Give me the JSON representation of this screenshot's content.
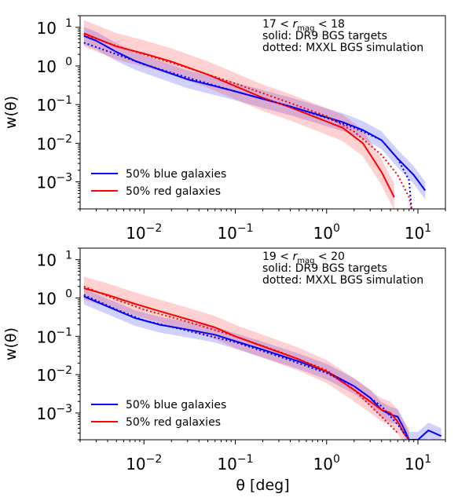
{
  "chart_data": [
    {
      "type": "line",
      "xscale": "log",
      "yscale": "log",
      "xlim": [
        0.002,
        20
      ],
      "ylim": [
        0.0002,
        20
      ],
      "ylabel": "w(θ)",
      "x_ticks": [
        {
          "value": 0.01,
          "base": "10",
          "exp": "−2"
        },
        {
          "value": 0.1,
          "base": "10",
          "exp": "−1"
        },
        {
          "value": 1,
          "base": "10",
          "exp": "0"
        },
        {
          "value": 10,
          "base": "10",
          "exp": "1"
        }
      ],
      "y_ticks": [
        {
          "value": 10,
          "base": "10",
          "exp": "1"
        },
        {
          "value": 1,
          "base": "10",
          "exp": "0"
        },
        {
          "value": 0.1,
          "base": "10",
          "exp": "−1"
        },
        {
          "value": 0.01,
          "base": "10",
          "exp": "−2"
        },
        {
          "value": 0.001,
          "base": "10",
          "exp": "−3"
        }
      ],
      "annotation": {
        "mag_left": "17 < ",
        "mag_r": "r",
        "mag_sub": "mag",
        "mag_right": " < 18",
        "line2": "solid: DR9 BGS targets",
        "line3": "dotted: MXXL BGS simulation"
      },
      "legend_position": "lower-left",
      "series": [
        {
          "name": "50% blue galaxies",
          "color": "#0000ff",
          "style": "solid",
          "points": [
            [
              0.0022,
              6.0
            ],
            [
              0.003,
              4.5
            ],
            [
              0.005,
              2.3
            ],
            [
              0.008,
              1.35
            ],
            [
              0.015,
              0.8
            ],
            [
              0.03,
              0.45
            ],
            [
              0.06,
              0.3
            ],
            [
              0.1,
              0.22
            ],
            [
              0.2,
              0.14
            ],
            [
              0.4,
              0.09
            ],
            [
              0.8,
              0.055
            ],
            [
              1.5,
              0.035
            ],
            [
              2.5,
              0.022
            ],
            [
              4,
              0.012
            ],
            [
              6,
              0.004
            ],
            [
              9,
              0.0015
            ],
            [
              12,
              0.0006
            ]
          ],
          "band_factor": 1.7
        },
        {
          "name": "50% red galaxies",
          "color": "#ff0000",
          "style": "solid",
          "points": [
            [
              0.0022,
              7.0
            ],
            [
              0.003,
              5.2
            ],
            [
              0.005,
              3.2
            ],
            [
              0.01,
              2.1
            ],
            [
              0.02,
              1.3
            ],
            [
              0.05,
              0.6
            ],
            [
              0.1,
              0.3
            ],
            [
              0.2,
              0.15
            ],
            [
              0.4,
              0.085
            ],
            [
              0.8,
              0.045
            ],
            [
              1.5,
              0.025
            ],
            [
              2.5,
              0.01
            ],
            [
              4,
              0.0018
            ],
            [
              5.5,
              0.0004
            ]
          ],
          "band_factor": 2.2
        },
        {
          "name": "",
          "color": "#0000ff",
          "style": "dotted",
          "points": [
            [
              0.0022,
              4.0
            ],
            [
              0.005,
              2.0
            ],
            [
              0.01,
              1.1
            ],
            [
              0.03,
              0.5
            ],
            [
              0.1,
              0.22
            ],
            [
              0.3,
              0.11
            ],
            [
              1,
              0.045
            ],
            [
              2,
              0.025
            ],
            [
              4,
              0.012
            ],
            [
              6,
              0.004
            ],
            [
              8,
              0.0011
            ],
            [
              8.5,
              0.0002
            ]
          ]
        },
        {
          "name": "",
          "color": "#ff0000",
          "style": "dotted",
          "points": [
            [
              0.0022,
              6.5
            ],
            [
              0.005,
              3.3
            ],
            [
              0.01,
              2.0
            ],
            [
              0.03,
              0.9
            ],
            [
              0.1,
              0.35
            ],
            [
              0.3,
              0.14
            ],
            [
              1,
              0.05
            ],
            [
              2,
              0.02
            ],
            [
              4,
              0.005
            ],
            [
              6,
              0.0015
            ],
            [
              8,
              0.0004
            ],
            [
              8.5,
              0.0002
            ]
          ]
        }
      ]
    },
    {
      "type": "line",
      "xscale": "log",
      "yscale": "log",
      "xlim": [
        0.002,
        20
      ],
      "ylim": [
        0.0002,
        20
      ],
      "ylabel": "w(θ)",
      "xlabel": "θ [deg]",
      "x_ticks": [
        {
          "value": 0.01,
          "base": "10",
          "exp": "−2"
        },
        {
          "value": 0.1,
          "base": "10",
          "exp": "−1"
        },
        {
          "value": 1,
          "base": "10",
          "exp": "0"
        },
        {
          "value": 10,
          "base": "10",
          "exp": "1"
        }
      ],
      "y_ticks": [
        {
          "value": 10,
          "base": "10",
          "exp": "1"
        },
        {
          "value": 1,
          "base": "10",
          "exp": "0"
        },
        {
          "value": 0.1,
          "base": "10",
          "exp": "−1"
        },
        {
          "value": 0.01,
          "base": "10",
          "exp": "−2"
        },
        {
          "value": 0.001,
          "base": "10",
          "exp": "−3"
        }
      ],
      "annotation": {
        "mag_left": "19 < ",
        "mag_r": "r",
        "mag_sub": "mag",
        "mag_right": " < 20",
        "line2": "solid: DR9 BGS targets",
        "line3": "dotted: MXXL BGS simulation"
      },
      "legend_position": "lower-left",
      "series": [
        {
          "name": "50% blue galaxies",
          "color": "#0000ff",
          "style": "solid",
          "points": [
            [
              0.0022,
              1.1
            ],
            [
              0.004,
              0.6
            ],
            [
              0.008,
              0.3
            ],
            [
              0.015,
              0.2
            ],
            [
              0.03,
              0.15
            ],
            [
              0.06,
              0.11
            ],
            [
              0.1,
              0.075
            ],
            [
              0.2,
              0.045
            ],
            [
              0.5,
              0.022
            ],
            [
              1,
              0.012
            ],
            [
              2,
              0.005
            ],
            [
              3,
              0.0025
            ],
            [
              4,
              0.0012
            ],
            [
              5,
              0.0009
            ],
            [
              6,
              0.0008
            ],
            [
              7,
              0.0004
            ],
            [
              8,
              0.0002
            ],
            [
              10,
              0.0002
            ],
            [
              13,
              0.00035
            ],
            [
              18,
              0.00025
            ]
          ],
          "band_factor": 1.6
        },
        {
          "name": "50% red galaxies",
          "color": "#ff0000",
          "style": "solid",
          "points": [
            [
              0.0022,
              1.8
            ],
            [
              0.004,
              1.2
            ],
            [
              0.008,
              0.7
            ],
            [
              0.015,
              0.45
            ],
            [
              0.03,
              0.28
            ],
            [
              0.06,
              0.17
            ],
            [
              0.1,
              0.1
            ],
            [
              0.2,
              0.055
            ],
            [
              0.5,
              0.025
            ],
            [
              1,
              0.012
            ],
            [
              2,
              0.004
            ],
            [
              3,
              0.002
            ],
            [
              4,
              0.0012
            ],
            [
              5,
              0.001
            ],
            [
              6,
              0.0006
            ],
            [
              7,
              0.0003
            ],
            [
              8,
              0.0002
            ]
          ],
          "band_factor": 2.0
        },
        {
          "name": "",
          "color": "#0000ff",
          "style": "dotted",
          "points": [
            [
              0.0022,
              1.2
            ],
            [
              0.005,
              0.5
            ],
            [
              0.01,
              0.26
            ],
            [
              0.03,
              0.14
            ],
            [
              0.1,
              0.07
            ],
            [
              0.3,
              0.03
            ],
            [
              1,
              0.011
            ],
            [
              2,
              0.005
            ],
            [
              4,
              0.0015
            ],
            [
              6,
              0.0005
            ],
            [
              8,
              0.0002
            ]
          ]
        },
        {
          "name": "",
          "color": "#ff0000",
          "style": "dotted",
          "points": [
            [
              0.0022,
              2.0
            ],
            [
              0.005,
              0.9
            ],
            [
              0.01,
              0.5
            ],
            [
              0.03,
              0.24
            ],
            [
              0.1,
              0.1
            ],
            [
              0.3,
              0.04
            ],
            [
              1,
              0.013
            ],
            [
              2,
              0.004
            ],
            [
              4,
              0.0008
            ],
            [
              6,
              0.0003
            ]
          ]
        }
      ]
    }
  ]
}
